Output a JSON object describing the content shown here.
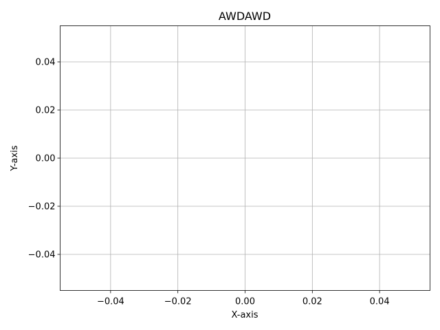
{
  "chart_data": {
    "type": "line",
    "title": "AWDAWD",
    "xlabel": "X-axis",
    "ylabel": "Y-axis",
    "xlim": [
      -0.055,
      0.055
    ],
    "ylim": [
      -0.055,
      0.055
    ],
    "grid": true,
    "x_ticks": [
      {
        "value": -0.04,
        "label": "−0.04"
      },
      {
        "value": -0.02,
        "label": "−0.02"
      },
      {
        "value": 0.0,
        "label": "0.00"
      },
      {
        "value": 0.02,
        "label": "0.02"
      },
      {
        "value": 0.04,
        "label": "0.04"
      }
    ],
    "y_ticks": [
      {
        "value": -0.04,
        "label": "−0.04"
      },
      {
        "value": -0.02,
        "label": "−0.02"
      },
      {
        "value": 0.0,
        "label": "0.00"
      },
      {
        "value": 0.02,
        "label": "0.02"
      },
      {
        "value": 0.04,
        "label": "0.04"
      }
    ],
    "series": [],
    "colors": {
      "grid": "#b0b0b0",
      "axis": "#000000",
      "background": "#ffffff"
    }
  }
}
